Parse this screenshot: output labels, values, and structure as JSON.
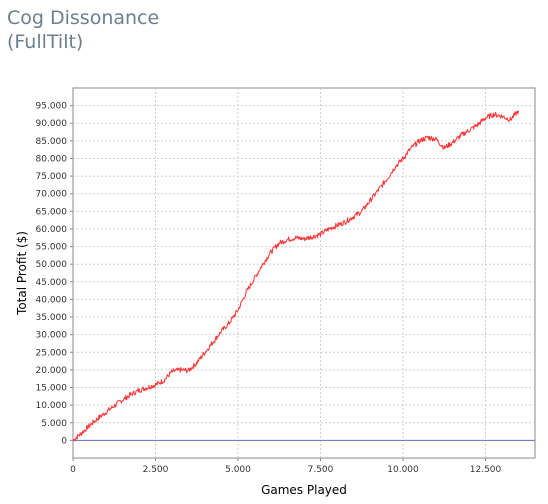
{
  "header": {
    "title_line1": "Cog Dissonance",
    "title_line2": "(FullTilt)"
  },
  "chart_data": {
    "type": "line",
    "title": "Cog Dissonance (FullTilt)",
    "xlabel": "Games Played",
    "ylabel": "Total Profit ($)",
    "xlim": [
      0,
      14000
    ],
    "ylim": [
      -5000,
      100000
    ],
    "x_ticks": [
      {
        "value": 0,
        "label": "0"
      },
      {
        "value": 2500,
        "label": "2.500"
      },
      {
        "value": 5000,
        "label": "5.000"
      },
      {
        "value": 7500,
        "label": "7.500"
      },
      {
        "value": 10000,
        "label": "10.000"
      },
      {
        "value": 12500,
        "label": "12.500"
      }
    ],
    "y_ticks": [
      {
        "value": 0,
        "label": "0"
      },
      {
        "value": 5000,
        "label": "5.000"
      },
      {
        "value": 10000,
        "label": "10.000"
      },
      {
        "value": 15000,
        "label": "15.000"
      },
      {
        "value": 20000,
        "label": "20.000"
      },
      {
        "value": 25000,
        "label": "25.000"
      },
      {
        "value": 30000,
        "label": "30.000"
      },
      {
        "value": 35000,
        "label": "35.000"
      },
      {
        "value": 40000,
        "label": "40.000"
      },
      {
        "value": 45000,
        "label": "45.000"
      },
      {
        "value": 50000,
        "label": "50.000"
      },
      {
        "value": 55000,
        "label": "55.000"
      },
      {
        "value": 60000,
        "label": "60.000"
      },
      {
        "value": 65000,
        "label": "65.000"
      },
      {
        "value": 70000,
        "label": "70.000"
      },
      {
        "value": 75000,
        "label": "75.000"
      },
      {
        "value": 80000,
        "label": "80.000"
      },
      {
        "value": 85000,
        "label": "85.000"
      },
      {
        "value": 90000,
        "label": "90.000"
      },
      {
        "value": 95000,
        "label": "95.000"
      }
    ],
    "grid": true,
    "reference_line": {
      "y": 0,
      "color": "#6666cc"
    },
    "series": [
      {
        "color": "#ff3333",
        "x": [
          0,
          250,
          500,
          750,
          1000,
          1250,
          1500,
          1750,
          2000,
          2250,
          2500,
          2750,
          3000,
          3250,
          3500,
          3750,
          4000,
          4250,
          4500,
          4750,
          5000,
          5250,
          5500,
          5750,
          6000,
          6250,
          6500,
          6750,
          7000,
          7250,
          7500,
          7750,
          8000,
          8250,
          8500,
          8750,
          9000,
          9250,
          9500,
          9750,
          10000,
          10250,
          10500,
          10750,
          11000,
          11250,
          11500,
          11750,
          12000,
          12250,
          12500,
          12750,
          13000,
          13250,
          13500
        ],
        "y": [
          0,
          2000,
          4200,
          6200,
          8000,
          9800,
          11500,
          13000,
          14200,
          15000,
          15800,
          17000,
          19500,
          20000,
          19800,
          22000,
          25000,
          28000,
          31000,
          33500,
          37000,
          42000,
          46000,
          50000,
          53500,
          56000,
          57000,
          57500,
          57200,
          57800,
          58500,
          60000,
          61000,
          62000,
          63500,
          65000,
          68000,
          71000,
          74000,
          77500,
          80000,
          83000,
          85000,
          86000,
          85500,
          83000,
          84500,
          86500,
          88000,
          89500,
          91500,
          92500,
          92000,
          91000,
          93500
        ]
      }
    ]
  }
}
